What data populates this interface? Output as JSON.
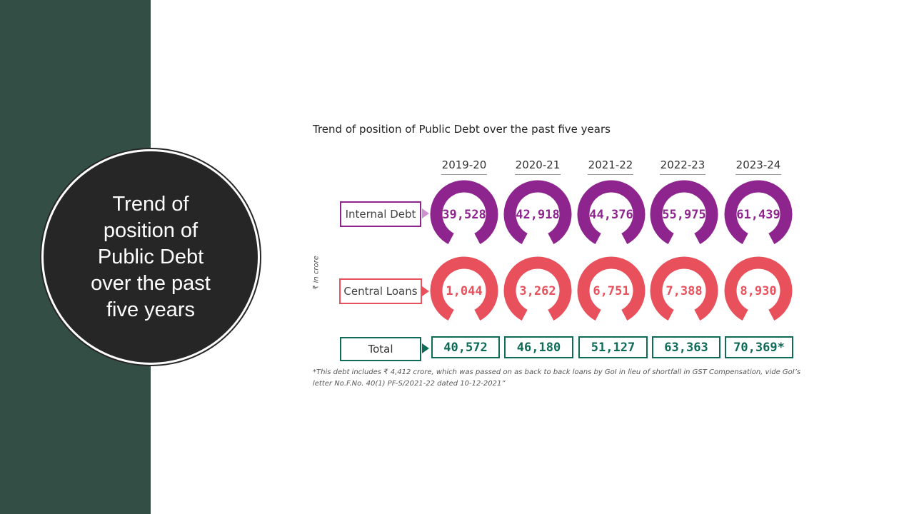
{
  "slide": {
    "side_title": "Trend of position of Public Debt over the past five years"
  },
  "colors": {
    "side_panel": "#334f45",
    "circle": "#262626",
    "internal": "#8e248e",
    "central": "#e8505b",
    "total": "#0e6b57"
  },
  "chart_data": {
    "type": "donut-grid",
    "title": "Trend of position of Public Debt over the past five years",
    "unit": "₹ in crore",
    "years": [
      "2019-20",
      "2020-21",
      "2021-22",
      "2022-23",
      "2023-24"
    ],
    "series": [
      {
        "name": "Internal Debt",
        "values": [
          39528,
          42918,
          44376,
          55975,
          61439
        ],
        "display": [
          "39,528",
          "42,918",
          "44,376",
          "55,975",
          "61,439"
        ]
      },
      {
        "name": "Central Loans",
        "values": [
          1044,
          3262,
          6751,
          7388,
          8930
        ],
        "display": [
          "1,044",
          "3,262",
          "6,751",
          "7,388",
          "8,930"
        ]
      }
    ],
    "total": {
      "name": "Total",
      "values": [
        40572,
        46180,
        51127,
        63363,
        70369
      ],
      "display": [
        "40,572",
        "46,180",
        "51,127",
        "63,363",
        "70,369*"
      ]
    },
    "footnote": "*This debt includes ₹ 4,412 crore, which was passed on as back to back loans by GoI in lieu of shortfall in GST Compensation, vide GoI’s letter No.F.No. 40(1) PF-S/2021-22 dated 10-12-2021”"
  }
}
